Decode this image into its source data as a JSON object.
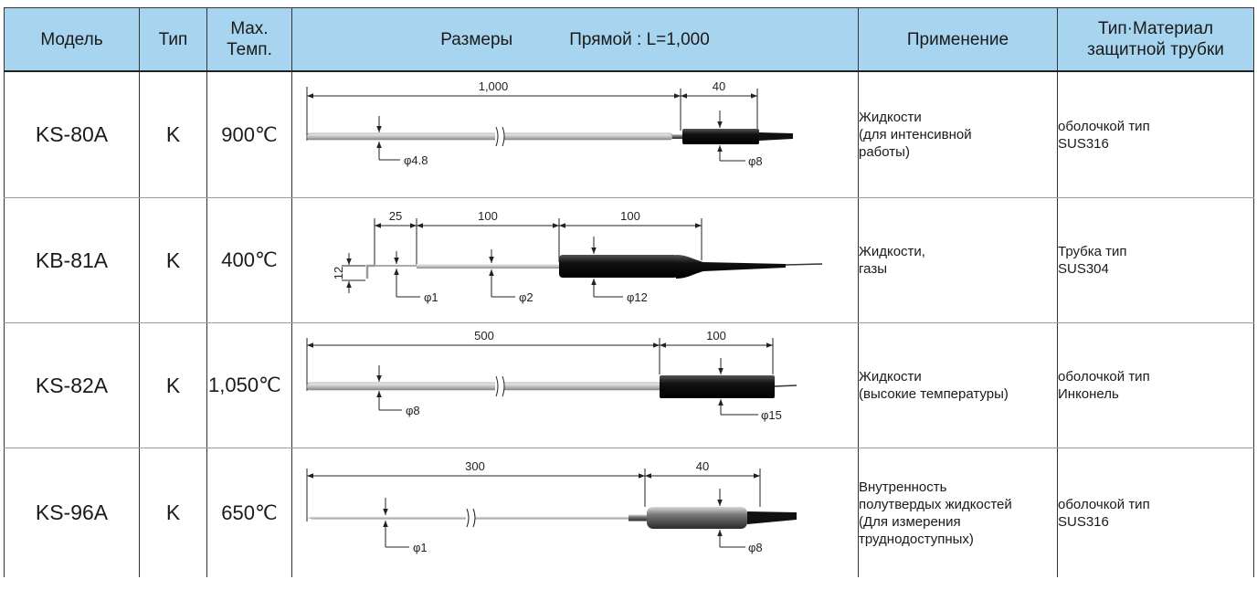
{
  "header": {
    "model": "Модель",
    "type": "Тип",
    "max_temp_line1": "Max.",
    "max_temp_line2": "Темп.",
    "dimensions": "Размеры",
    "straight": "Прямой : L=1,000",
    "application": "Применение",
    "material_line1": "Тип·Материал",
    "material_line2": "защитной трубки"
  },
  "rows": [
    {
      "model": "KS-80A",
      "type": "K",
      "max_temp": "900℃",
      "dims": {
        "length": "1,000",
        "handle": "40",
        "dia_probe": "φ4.8",
        "dia_handle": "φ8"
      },
      "application": [
        "Жидкости",
        "(для интенсивной",
        "работы)"
      ],
      "material": [
        "оболочкой тип",
        "SUS316"
      ]
    },
    {
      "model": "KB-81A",
      "type": "K",
      "max_temp": "400℃",
      "dims": {
        "tip": "25",
        "mid": "100",
        "handle": "100",
        "bend": "12",
        "dia_tip": "φ1",
        "dia_mid": "φ2",
        "dia_handle": "φ12"
      },
      "application": [
        "Жидкости,",
        "газы"
      ],
      "material": [
        "Трубка тип",
        "SUS304"
      ]
    },
    {
      "model": "KS-82A",
      "type": "K",
      "max_temp": "1,050℃",
      "dims": {
        "length": "500",
        "handle": "100",
        "dia_probe": "φ8",
        "dia_handle": "φ15"
      },
      "application": [
        "Жидкости",
        "(высокие температуры)"
      ],
      "material": [
        "оболочкой тип",
        "Инконель"
      ]
    },
    {
      "model": "KS-96A",
      "type": "K",
      "max_temp": "650℃",
      "dims": {
        "length": "300",
        "handle": "40",
        "dia_probe": "φ1",
        "dia_handle": "φ8"
      },
      "application": [
        "Внутренность",
        "полутвердых жидкостей",
        "(Для измерения",
        "труднодоступных)"
      ],
      "material": [
        "оболочкой тип",
        "SUS316"
      ]
    }
  ],
  "colors": {
    "header_bg": "#a7d4ee",
    "border": "#333333",
    "row_divider": "#9a9a9a"
  }
}
